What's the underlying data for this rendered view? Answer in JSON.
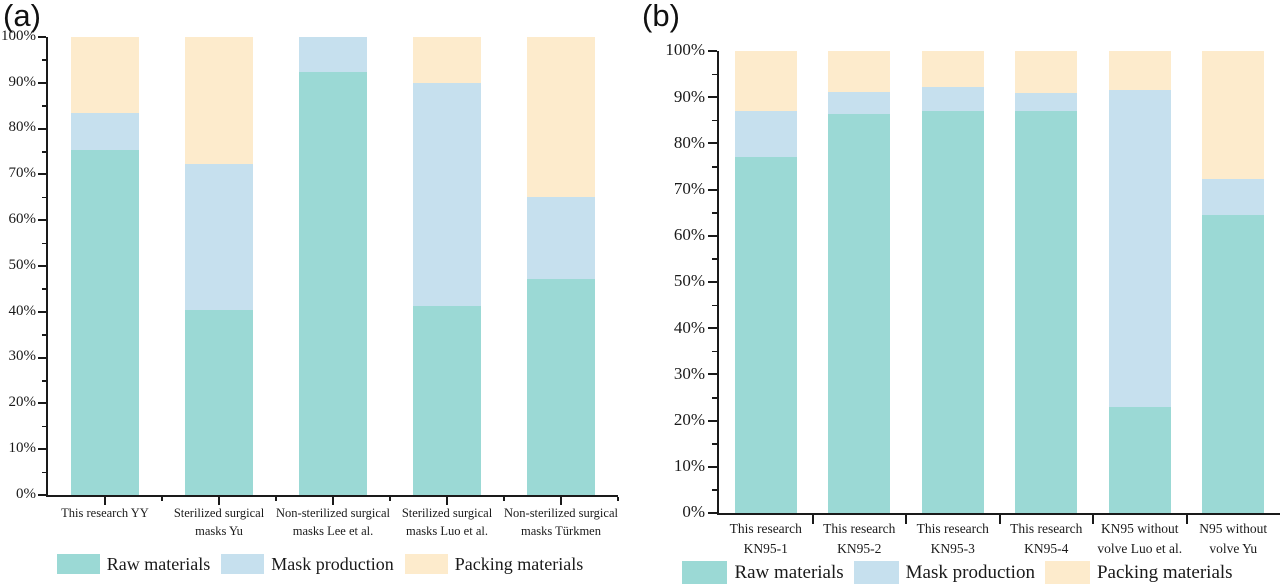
{
  "figure": {
    "description": "Two stacked 100% bar charts comparing life-cycle stage contributions of masks",
    "panels": [
      {
        "label": "(a)"
      },
      {
        "label": "(b)"
      }
    ]
  },
  "colors": {
    "raw_materials": "#9bd9d5",
    "mask_production": "#c6e0ee",
    "packing_materials": "#fdebcc",
    "axis": "#1a1a1a"
  },
  "legend": {
    "items": [
      "Raw materials",
      "Mask production",
      "Packing materials"
    ]
  },
  "chart_data": [
    {
      "id": "a",
      "type": "bar",
      "stacked": true,
      "panel_label": "(a)",
      "title": "",
      "xlabel": "",
      "ylabel": "",
      "ylim": [
        0,
        100
      ],
      "grid": false,
      "legend_position": "bottom",
      "ytick_labels": [
        "0%",
        "10%",
        "20%",
        "30%",
        "40%",
        "50%",
        "60%",
        "70%",
        "80%",
        "90%",
        "100%"
      ],
      "categories": [
        [
          "This research YY"
        ],
        [
          "Sterilized surgical",
          "masks Yu"
        ],
        [
          "Non-sterilized surgical",
          "masks Lee et al."
        ],
        [
          "Sterilized surgical",
          "masks Luo et al."
        ],
        [
          "Non-sterilized surgical",
          "masks Türkmen"
        ]
      ],
      "series": [
        {
          "name": "Raw materials",
          "color": "#9bd9d5",
          "values": [
            75.4,
            40.4,
            92.4,
            41.2,
            47.1
          ]
        },
        {
          "name": "Mask production",
          "color": "#c6e0ee",
          "values": [
            8.1,
            31.8,
            7.6,
            48.8,
            18.0
          ]
        },
        {
          "name": "Packing materials",
          "color": "#fdebcc",
          "values": [
            16.5,
            27.8,
            0.0,
            10.0,
            34.9
          ]
        }
      ]
    },
    {
      "id": "b",
      "type": "bar",
      "stacked": true,
      "panel_label": "(b)",
      "title": "",
      "xlabel": "",
      "ylabel": "",
      "ylim": [
        0,
        100
      ],
      "grid": false,
      "legend_position": "bottom",
      "ytick_labels": [
        "0%",
        "10%",
        "20%",
        "30%",
        "40%",
        "50%",
        "60%",
        "70%",
        "80%",
        "90%",
        "100%"
      ],
      "categories": [
        [
          "This research",
          "KN95-1"
        ],
        [
          "This research",
          "KN95-2"
        ],
        [
          "This research",
          "KN95-3"
        ],
        [
          "This research",
          "KN95-4"
        ],
        [
          "KN95 without",
          "volve Luo et al."
        ],
        [
          "N95 without",
          "volve Yu"
        ]
      ],
      "series": [
        {
          "name": "Raw materials",
          "color": "#9bd9d5",
          "values": [
            77.0,
            86.3,
            87.0,
            87.0,
            23.0,
            64.6
          ]
        },
        {
          "name": "Mask production",
          "color": "#c6e0ee",
          "values": [
            10.1,
            4.9,
            5.1,
            3.9,
            68.5,
            7.7
          ]
        },
        {
          "name": "Packing materials",
          "color": "#fdebcc",
          "values": [
            12.9,
            8.8,
            7.9,
            9.1,
            8.5,
            27.7
          ]
        }
      ]
    }
  ]
}
